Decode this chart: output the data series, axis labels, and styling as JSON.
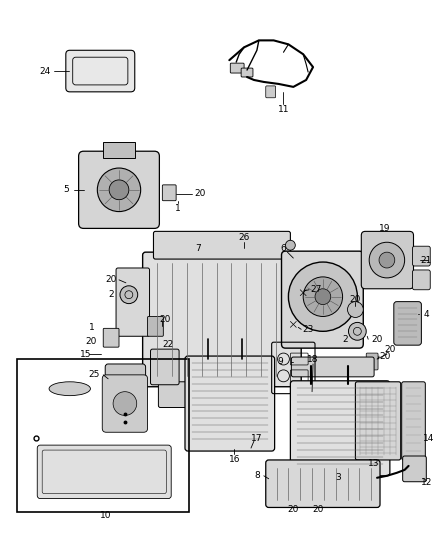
{
  "bg_color": "#ffffff",
  "fig_width": 4.38,
  "fig_height": 5.33,
  "dpi": 100
}
